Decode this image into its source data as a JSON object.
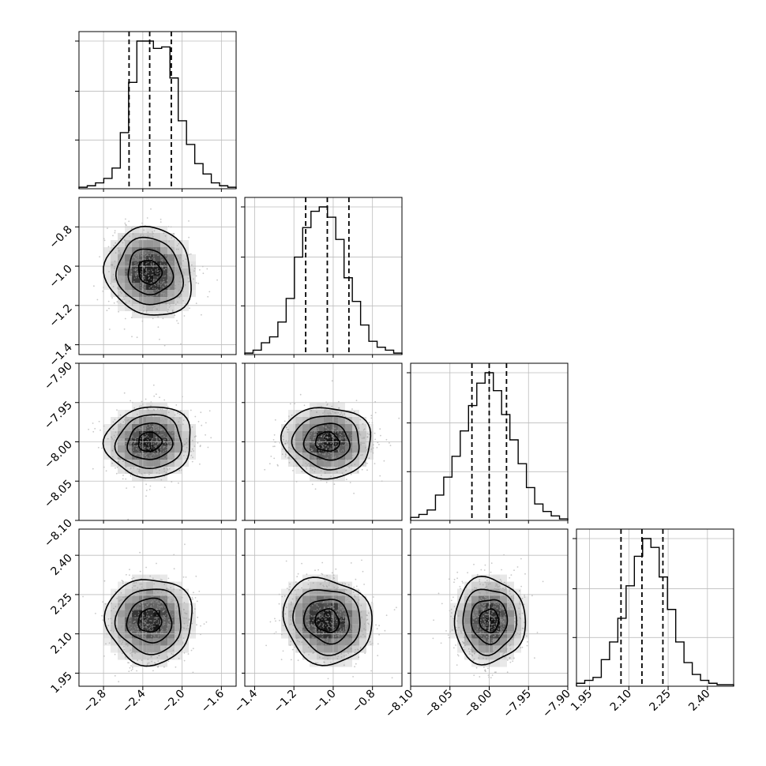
{
  "chart_data": {
    "type": "corner",
    "title": "",
    "grid": true,
    "parameters": [
      {
        "index": 0,
        "label": "",
        "range": [
          -3.05,
          -1.45
        ],
        "ticks": [
          -2.8,
          -2.4,
          -2.0,
          -1.6
        ],
        "tick_labels": [
          "−2.8",
          "−2.4",
          "−2.0",
          "−1.6"
        ],
        "median": -2.33,
        "q16": -2.54,
        "q84": -2.11
      },
      {
        "index": 1,
        "label": "",
        "range": [
          -1.45,
          -0.65
        ],
        "ticks": [
          -1.4,
          -1.2,
          -1.0,
          -0.8
        ],
        "tick_labels": [
          "−1.4",
          "−1.2",
          "−1.0",
          "−0.8"
        ],
        "median": -1.03,
        "q16": -1.14,
        "q84": -0.92
      },
      {
        "index": 2,
        "label": "",
        "range": [
          -8.1,
          -7.9
        ],
        "ticks": [
          -8.1,
          -8.05,
          -8.0,
          -7.95,
          -7.9
        ],
        "tick_labels": [
          "−8.10",
          "−8.05",
          "−8.00",
          "−7.95",
          "−7.90"
        ],
        "median": -8.0,
        "q16": -8.022,
        "q84": -7.978
      },
      {
        "index": 3,
        "label": "",
        "range": [
          1.9,
          2.5
        ],
        "ticks": [
          1.95,
          2.1,
          2.25,
          2.4
        ],
        "tick_labels": [
          "1.95",
          "2.10",
          "2.25",
          "2.40"
        ],
        "median": 2.15,
        "q16": 2.07,
        "q84": 2.23
      }
    ],
    "histograms": [
      [
        1,
        2,
        4,
        7,
        14,
        38,
        72,
        100,
        100,
        95,
        96,
        75,
        46,
        30,
        17,
        10,
        4,
        2,
        1
      ],
      [
        1,
        3,
        8,
        12,
        22,
        38,
        66,
        86,
        97,
        100,
        93,
        78,
        52,
        36,
        20,
        9,
        5,
        3,
        1
      ],
      [
        2,
        4,
        7,
        17,
        29,
        43,
        60,
        77,
        92,
        99,
        87,
        71,
        54,
        38,
        22,
        11,
        6,
        3,
        1
      ],
      [
        2,
        4,
        6,
        18,
        30,
        46,
        68,
        88,
        100,
        94,
        74,
        52,
        30,
        16,
        8,
        4,
        2,
        1,
        1
      ]
    ],
    "correlations": {
      "1,0": -0.1,
      "2,0": 0.05,
      "2,1": -0.05,
      "3,0": 0.0,
      "3,1": -0.1,
      "3,2": 0.0
    },
    "quantile_style": "dashed",
    "contours": "sigma levels 0.5, 1.0, 1.5, 2.0"
  }
}
